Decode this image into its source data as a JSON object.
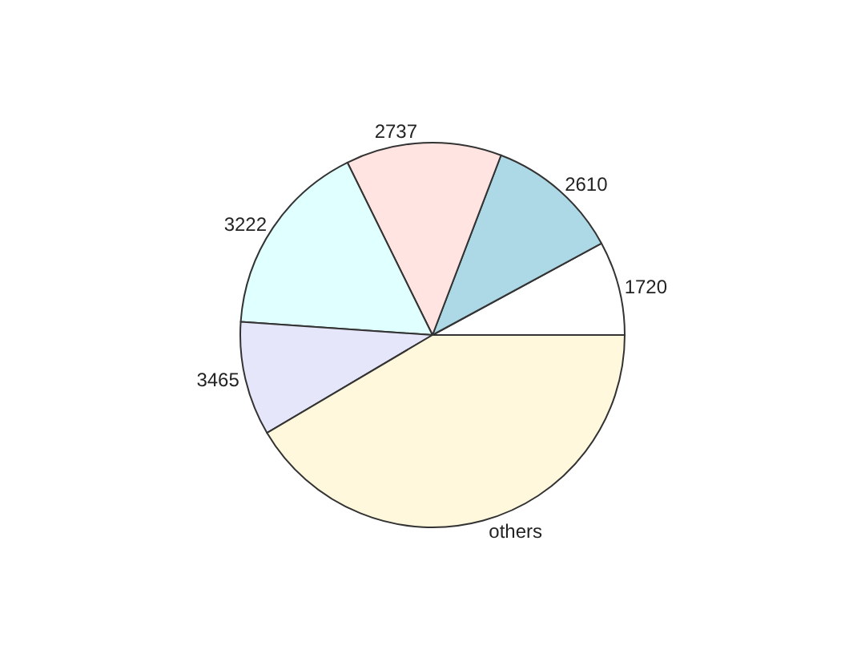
{
  "chart_data": {
    "type": "pie",
    "categories": [
      "1720",
      "2610",
      "2737",
      "3222",
      "3465",
      "others"
    ],
    "values": [
      7.9,
      11.3,
      13.1,
      16.6,
      9.6,
      41.5
    ],
    "colors": [
      "#ffffff",
      "#add8e6",
      "#ffe4e1",
      "#e0ffff",
      "#e6e6fa",
      "#fff8dc"
    ],
    "legend": false
  }
}
